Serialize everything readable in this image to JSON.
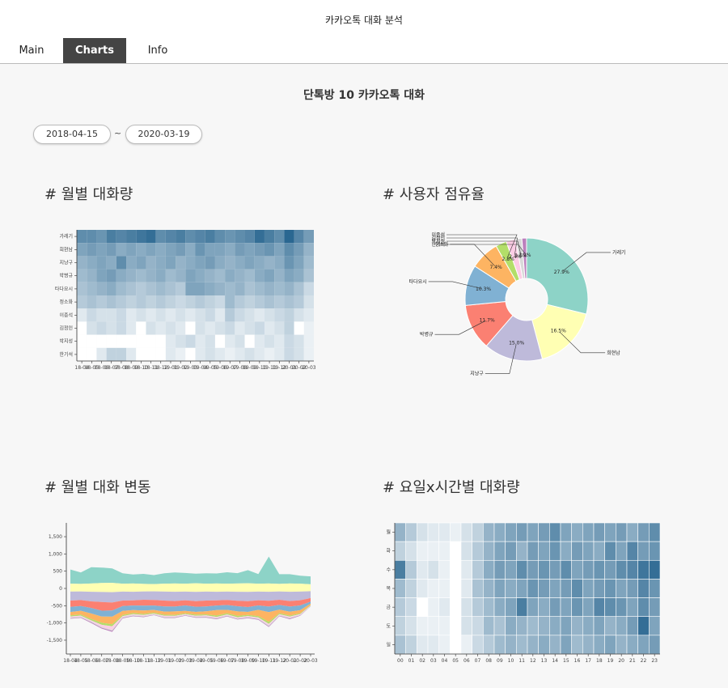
{
  "app": {
    "title": "카카오톡 대화 분석"
  },
  "tabs": [
    {
      "label": "Main"
    },
    {
      "label": "Charts"
    },
    {
      "label": "Info"
    }
  ],
  "active_tab": "Charts",
  "page": {
    "title": "단톡방 10 카카오톡 대화"
  },
  "date_range": {
    "start": "2018-04-15",
    "separator": "~",
    "end": "2020-03-19"
  },
  "sections": {
    "monthly_volume": "# 월별 대화량",
    "user_share": "# 사용자 점유율",
    "monthly_trend": "# 월별 대화 변동",
    "weekday_hour": "# 요일x시간별 대화량"
  },
  "colors": {
    "set3": [
      "#8dd3c7",
      "#ffffb3",
      "#bebada",
      "#fb8072",
      "#80b1d3",
      "#fdb462",
      "#b3de69",
      "#fccde5",
      "#d9d9d9",
      "#bc80bd",
      "#ccebc5"
    ],
    "heat_low": "#f5f8fa",
    "heat_high": "#1f5f8b"
  },
  "chart_data": [
    {
      "type": "heatmap",
      "title": "# 월별 대화량",
      "x": [
        "18-04",
        "18-05",
        "18-06",
        "18-07",
        "18-08",
        "18-09",
        "18-10",
        "18-11",
        "18-12",
        "19-01",
        "19-02",
        "19-03",
        "19-04",
        "19-05",
        "19-06",
        "19-07",
        "19-08",
        "19-09",
        "19-10",
        "19-11",
        "19-12",
        "20-01",
        "20-02",
        "20-03"
      ],
      "x_tick_labels": [
        "18-04",
        "18-05",
        "18-06",
        "18-07",
        "18-08",
        "18-09",
        "18-10",
        "18-11",
        "18-12",
        "19-01",
        "19-02",
        "19-03",
        "19-04",
        "19-05",
        "19-06",
        "19-07",
        "19-08",
        "19-09",
        "19-10",
        "19-11",
        "19-12",
        "20-01",
        "20-02",
        "20-03"
      ],
      "y": [
        "가레기",
        "희현남",
        "지냥구",
        "박병규",
        "타다요시",
        "정소화",
        "이종석",
        "김정인",
        "박지성",
        "한기석"
      ],
      "values": [
        [
          0.7,
          0.7,
          0.65,
          0.8,
          0.75,
          0.8,
          0.85,
          0.9,
          0.7,
          0.75,
          0.8,
          0.7,
          0.75,
          0.8,
          0.7,
          0.65,
          0.7,
          0.75,
          0.9,
          0.8,
          0.7,
          0.95,
          0.75,
          0.6
        ],
        [
          0.55,
          0.6,
          0.55,
          0.6,
          0.5,
          0.55,
          0.5,
          0.55,
          0.5,
          0.55,
          0.6,
          0.5,
          0.65,
          0.55,
          0.55,
          0.5,
          0.6,
          0.55,
          0.6,
          0.65,
          0.55,
          0.7,
          0.6,
          0.45
        ],
        [
          0.45,
          0.5,
          0.55,
          0.5,
          0.7,
          0.5,
          0.55,
          0.45,
          0.5,
          0.55,
          0.45,
          0.5,
          0.55,
          0.6,
          0.5,
          0.45,
          0.5,
          0.55,
          0.5,
          0.45,
          0.5,
          0.65,
          0.55,
          0.4
        ],
        [
          0.4,
          0.45,
          0.55,
          0.6,
          0.5,
          0.45,
          0.4,
          0.45,
          0.5,
          0.4,
          0.45,
          0.55,
          0.5,
          0.45,
          0.4,
          0.5,
          0.45,
          0.4,
          0.5,
          0.55,
          0.45,
          0.55,
          0.5,
          0.35
        ],
        [
          0.35,
          0.4,
          0.45,
          0.5,
          0.4,
          0.35,
          0.3,
          0.35,
          0.4,
          0.35,
          0.3,
          0.55,
          0.55,
          0.5,
          0.45,
          0.4,
          0.45,
          0.35,
          0.4,
          0.45,
          0.4,
          0.45,
          0.35,
          0.2
        ],
        [
          0.3,
          0.35,
          0.3,
          0.35,
          0.3,
          0.25,
          0.3,
          0.25,
          0.3,
          0.25,
          0.2,
          0.25,
          0.3,
          0.25,
          0.2,
          0.4,
          0.3,
          0.25,
          0.3,
          0.35,
          0.3,
          0.35,
          0.3,
          0.15
        ],
        [
          0.1,
          0.2,
          0.15,
          0.15,
          0.2,
          0.1,
          0.15,
          0.1,
          0.15,
          0.1,
          0.15,
          0.1,
          0.15,
          0.2,
          0.1,
          0.3,
          0.2,
          0.15,
          0.1,
          0.15,
          0.2,
          0.25,
          0.15,
          0.1
        ],
        [
          0.0,
          0.15,
          0.2,
          0.15,
          0.2,
          0.1,
          0.0,
          0.15,
          0.1,
          0.15,
          0.1,
          0.0,
          0.15,
          0.1,
          0.15,
          0.2,
          0.1,
          0.15,
          0.2,
          0.1,
          0.15,
          0.25,
          0.0,
          0.05
        ],
        [
          0.0,
          0.0,
          0.0,
          0.0,
          0.0,
          0.0,
          0.0,
          0.0,
          0.0,
          0.1,
          0.15,
          0.2,
          0.1,
          0.15,
          0.0,
          0.1,
          0.15,
          0.0,
          0.1,
          0.15,
          0.1,
          0.2,
          0.15,
          0.05
        ],
        [
          0.0,
          0.0,
          0.1,
          0.25,
          0.25,
          0.1,
          0.0,
          0.0,
          0.0,
          0.1,
          0.05,
          0.0,
          0.1,
          0.15,
          0.1,
          0.05,
          0.1,
          0.15,
          0.1,
          0.05,
          0.1,
          0.2,
          0.15,
          0.05
        ]
      ]
    },
    {
      "type": "pie",
      "title": "# 사용자 점유율",
      "donut": true,
      "labels": [
        "가레기",
        "희현남",
        "지냥구",
        "박병규",
        "타다요시",
        "정소화",
        "이종석",
        "김정인",
        "박지성",
        "한기석"
      ],
      "values": [
        27.9,
        16.5,
        15.0,
        11.7,
        10.3,
        7.4,
        2.8,
        2.4,
        1.6,
        1.2
      ],
      "data_labels": [
        "27.9%",
        "16.5%",
        "15.0%",
        "11.7%",
        "10.3%",
        "7.4%",
        "2.8%",
        "2.4%",
        "1.6%",
        "1.2%"
      ]
    },
    {
      "type": "area",
      "title": "# 월별 대화 변동",
      "stacked": true,
      "layout": "streamgraph",
      "x": [
        "18-04",
        "18-05",
        "18-06",
        "18-07",
        "18-08",
        "18-09",
        "18-10",
        "18-11",
        "18-12",
        "19-01",
        "19-02",
        "19-03",
        "19-04",
        "19-05",
        "19-06",
        "19-07",
        "19-08",
        "19-09",
        "19-10",
        "19-11",
        "19-12",
        "20-01",
        "20-02",
        "20-03"
      ],
      "x_tick_labels": [
        "18-04",
        "18-05",
        "18-06",
        "18-07",
        "18-08",
        "18-09",
        "18-10",
        "18-11",
        "18-12",
        "19-01",
        "19-02",
        "19-03",
        "19-04",
        "19-05",
        "19-06",
        "19-07",
        "19-08",
        "19-09",
        "19-10",
        "19-11",
        "19-12",
        "20-01",
        "20-02",
        "20-03"
      ],
      "y_ticks": [
        1500,
        1000,
        500,
        0,
        -500,
        -1000,
        -1500
      ],
      "y_tick_labels": [
        "1,500",
        "1,000",
        "500",
        "0",
        "-500",
        "-1,000",
        "-1,500"
      ],
      "ylim": [
        -1900,
        1900
      ],
      "series": [
        {
          "name": "가레기",
          "values": [
            410,
            330,
            470,
            450,
            420,
            300,
            260,
            290,
            260,
            300,
            320,
            310,
            280,
            300,
            290,
            330,
            300,
            380,
            280,
            780,
            280,
            270,
            230,
            230
          ]
        },
        {
          "name": "희현남",
          "values": [
            230,
            220,
            240,
            260,
            270,
            230,
            240,
            220,
            210,
            230,
            240,
            230,
            250,
            230,
            240,
            230,
            240,
            250,
            230,
            240,
            220,
            240,
            230,
            200
          ]
        },
        {
          "name": "지냥구",
          "values": [
            260,
            250,
            280,
            290,
            300,
            260,
            250,
            240,
            250,
            260,
            270,
            250,
            270,
            260,
            250,
            240,
            260,
            270,
            250,
            260,
            240,
            270,
            250,
            200
          ]
        },
        {
          "name": "박병규",
          "values": [
            180,
            170,
            190,
            250,
            230,
            160,
            150,
            170,
            160,
            170,
            160,
            150,
            160,
            170,
            150,
            150,
            160,
            170,
            150,
            170,
            150,
            160,
            150,
            100
          ]
        },
        {
          "name": "타다요시",
          "values": [
            150,
            140,
            160,
            170,
            180,
            140,
            130,
            140,
            130,
            150,
            140,
            160,
            150,
            140,
            130,
            140,
            150,
            140,
            130,
            160,
            140,
            150,
            140,
            60
          ]
        },
        {
          "name": "정소화",
          "values": [
            100,
            110,
            160,
            180,
            220,
            120,
            90,
            100,
            80,
            90,
            100,
            70,
            80,
            90,
            160,
            100,
            130,
            90,
            180,
            280,
            100,
            110,
            90,
            40
          ]
        },
        {
          "name": "이종석",
          "values": [
            30,
            30,
            40,
            60,
            60,
            30,
            30,
            30,
            25,
            30,
            30,
            25,
            30,
            30,
            40,
            30,
            40,
            30,
            40,
            60,
            30,
            30,
            25,
            15
          ]
        },
        {
          "name": "김정인",
          "values": [
            30,
            30,
            30,
            60,
            100,
            30,
            25,
            30,
            20,
            30,
            25,
            20,
            25,
            30,
            30,
            25,
            30,
            25,
            30,
            40,
            25,
            30,
            20,
            10
          ]
        },
        {
          "name": "박지성",
          "values": [
            20,
            20,
            25,
            25,
            30,
            20,
            20,
            20,
            15,
            20,
            20,
            15,
            20,
            20,
            20,
            20,
            20,
            20,
            20,
            30,
            20,
            25,
            15,
            10
          ]
        },
        {
          "name": "한기석",
          "values": [
            15,
            15,
            20,
            25,
            30,
            15,
            15,
            15,
            10,
            15,
            15,
            10,
            15,
            15,
            15,
            15,
            15,
            15,
            15,
            20,
            15,
            20,
            10,
            5
          ]
        }
      ]
    },
    {
      "type": "heatmap",
      "title": "# 요일x시간별 대화량",
      "x": [
        "00",
        "01",
        "02",
        "03",
        "04",
        "05",
        "06",
        "07",
        "08",
        "09",
        "10",
        "11",
        "12",
        "13",
        "14",
        "15",
        "16",
        "17",
        "18",
        "19",
        "20",
        "21",
        "22",
        "23"
      ],
      "x_tick_labels": [
        "00",
        "01",
        "02",
        "03",
        "04",
        "05",
        "06",
        "07",
        "08",
        "09",
        "10",
        "11",
        "12",
        "13",
        "14",
        "15",
        "16",
        "17",
        "18",
        "19",
        "20",
        "21",
        "22",
        "23"
      ],
      "y": [
        "월",
        "화",
        "수",
        "목",
        "금",
        "토",
        "일"
      ],
      "values": [
        [
          0.45,
          0.3,
          0.15,
          0.1,
          0.1,
          0.05,
          0.15,
          0.25,
          0.45,
          0.5,
          0.55,
          0.6,
          0.55,
          0.6,
          0.7,
          0.55,
          0.5,
          0.55,
          0.6,
          0.55,
          0.6,
          0.5,
          0.6,
          0.7
        ],
        [
          0.25,
          0.15,
          0.05,
          0.05,
          0.05,
          0.0,
          0.15,
          0.3,
          0.45,
          0.55,
          0.6,
          0.45,
          0.6,
          0.55,
          0.65,
          0.5,
          0.6,
          0.55,
          0.5,
          0.7,
          0.55,
          0.75,
          0.6,
          0.65
        ],
        [
          0.8,
          0.3,
          0.1,
          0.15,
          0.05,
          0.0,
          0.1,
          0.3,
          0.5,
          0.6,
          0.55,
          0.7,
          0.6,
          0.65,
          0.6,
          0.7,
          0.55,
          0.6,
          0.65,
          0.6,
          0.7,
          0.75,
          0.85,
          0.9
        ],
        [
          0.4,
          0.25,
          0.1,
          0.05,
          0.05,
          0.0,
          0.1,
          0.35,
          0.45,
          0.55,
          0.5,
          0.55,
          0.65,
          0.6,
          0.55,
          0.6,
          0.7,
          0.55,
          0.6,
          0.65,
          0.55,
          0.6,
          0.75,
          0.65
        ],
        [
          0.3,
          0.2,
          0.0,
          0.05,
          0.1,
          0.0,
          0.15,
          0.3,
          0.4,
          0.5,
          0.55,
          0.8,
          0.55,
          0.5,
          0.6,
          0.55,
          0.65,
          0.55,
          0.75,
          0.7,
          0.65,
          0.55,
          0.7,
          0.6
        ],
        [
          0.25,
          0.15,
          0.05,
          0.05,
          0.05,
          0.0,
          0.15,
          0.2,
          0.4,
          0.35,
          0.5,
          0.45,
          0.4,
          0.45,
          0.5,
          0.55,
          0.45,
          0.5,
          0.55,
          0.45,
          0.5,
          0.6,
          0.9,
          0.55
        ],
        [
          0.35,
          0.25,
          0.1,
          0.1,
          0.05,
          0.0,
          0.05,
          0.2,
          0.3,
          0.4,
          0.45,
          0.4,
          0.45,
          0.5,
          0.45,
          0.55,
          0.4,
          0.45,
          0.5,
          0.55,
          0.45,
          0.5,
          0.55,
          0.6
        ]
      ]
    }
  ]
}
